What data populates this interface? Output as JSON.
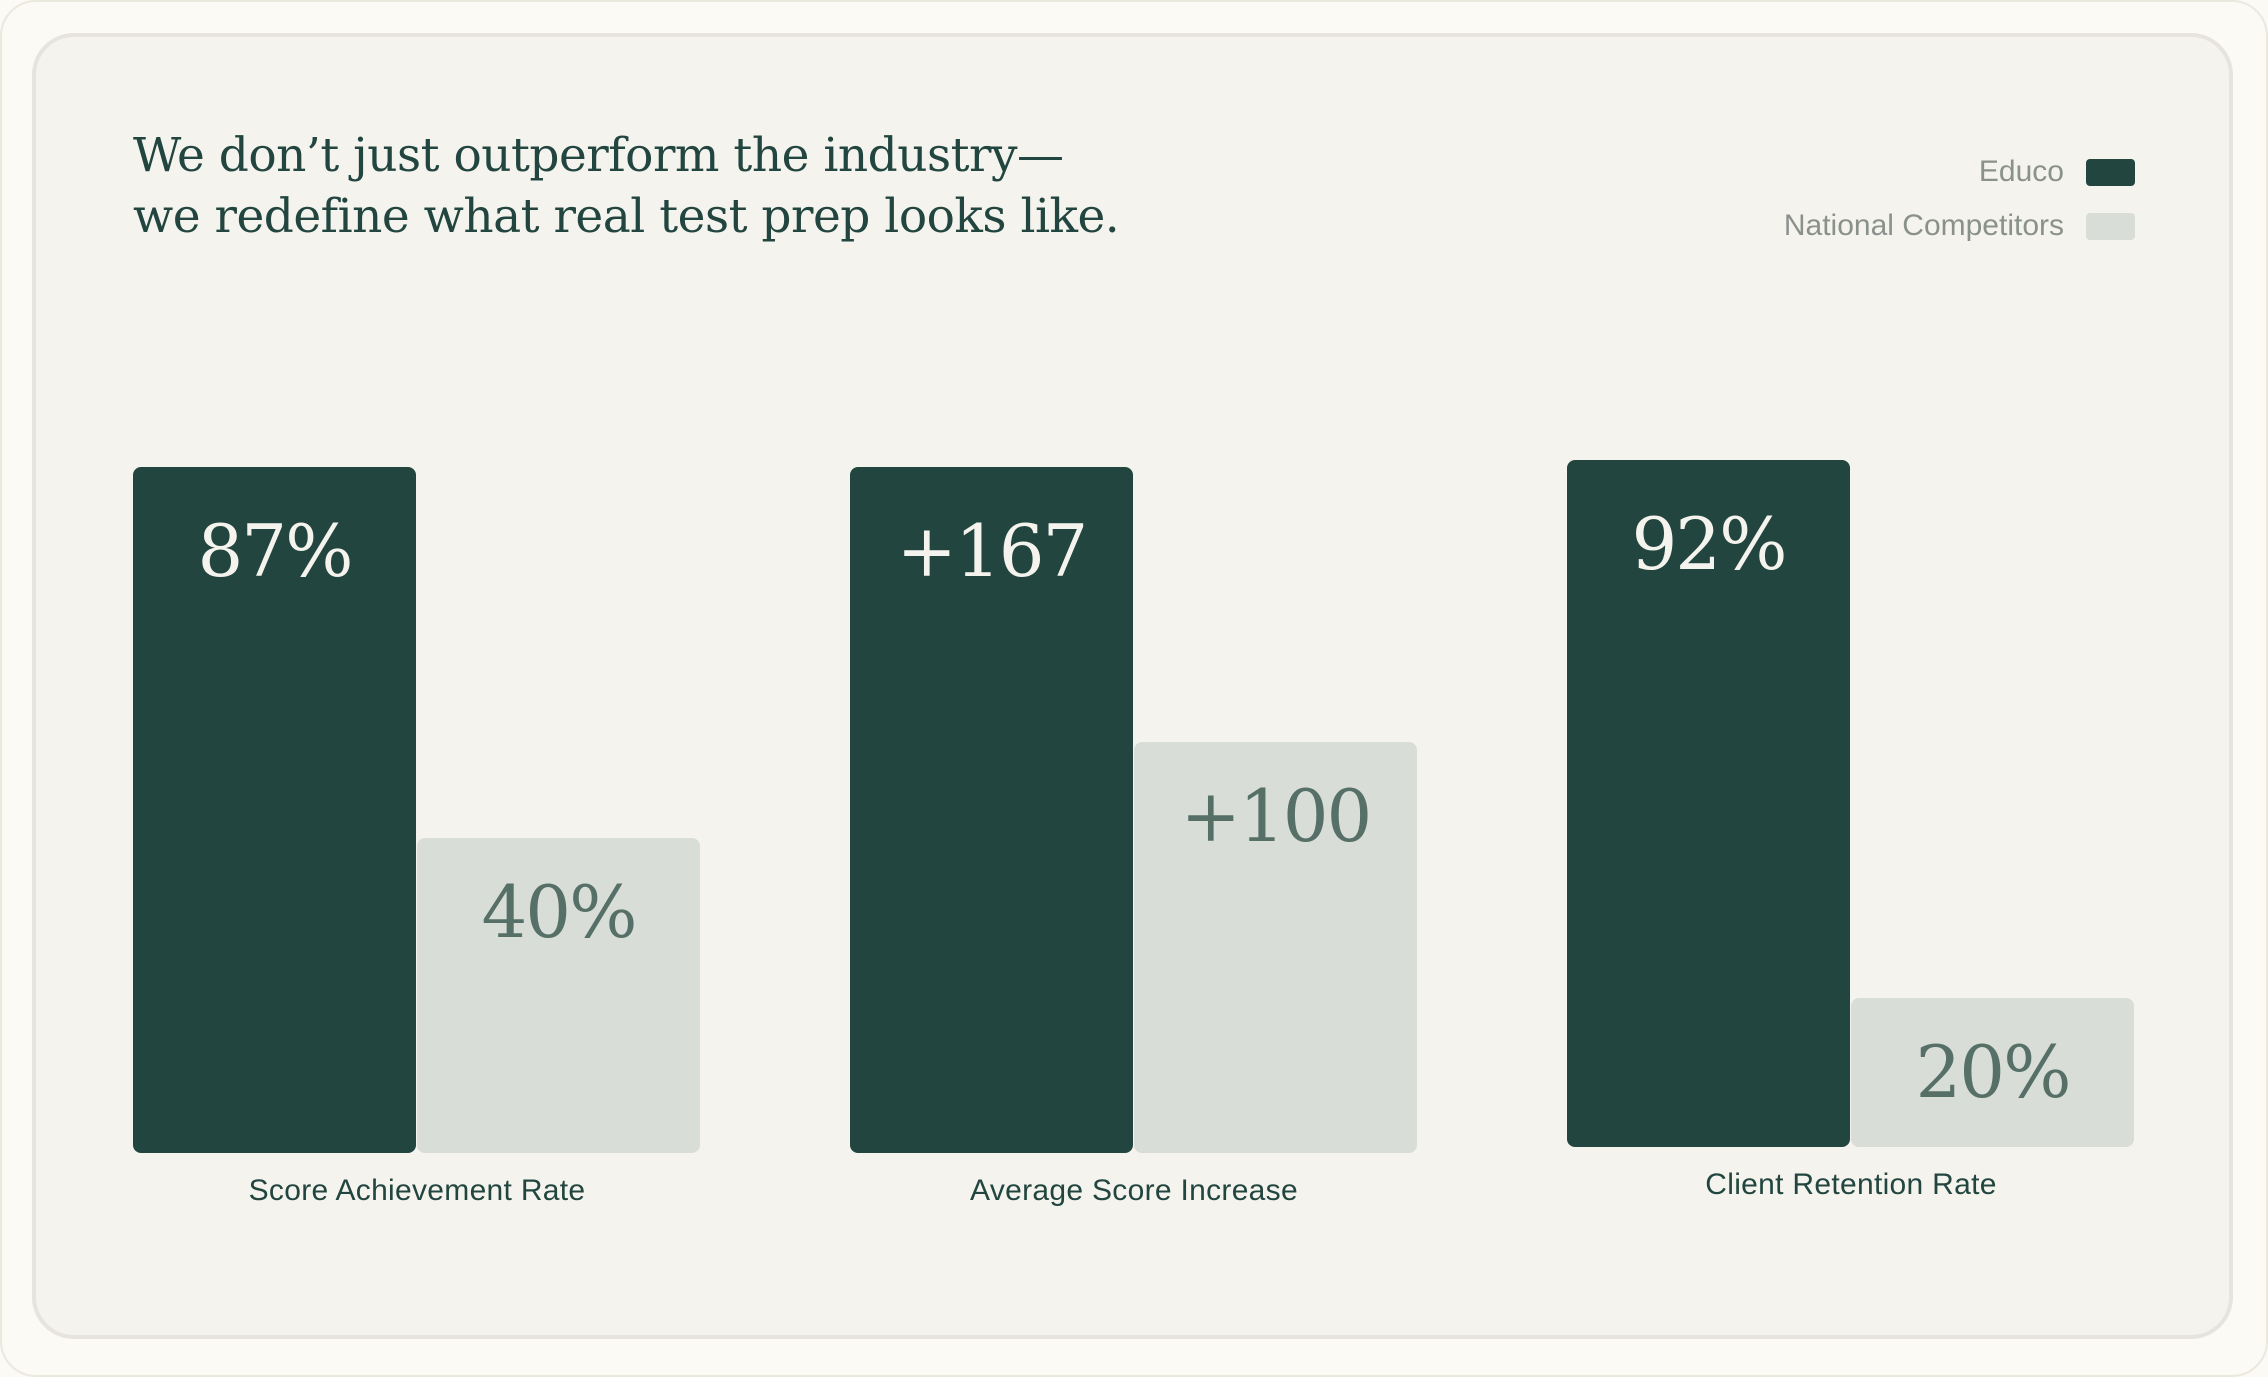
{
  "colors": {
    "educo": "#22463f",
    "competitors": "#d8ddd8",
    "educo_text": "#f5f3ee",
    "competitor_text": "#567068"
  },
  "chart_data": {
    "type": "bar",
    "title_lines": [
      "We don’t just outperform the industry—",
      "we redefine what real test prep looks like."
    ],
    "categories": [
      "Score Achievement Rate",
      "Average Score Increase",
      "Client Retention Rate"
    ],
    "series": [
      {
        "name": "Educo",
        "values": [
          87,
          167,
          92
        ],
        "labels": [
          "87%",
          "+167",
          "92%"
        ]
      },
      {
        "name": "National Competitors",
        "values": [
          40,
          100,
          20
        ],
        "labels": [
          "40%",
          "+100",
          "20%"
        ]
      }
    ],
    "legend": "top-right",
    "xlabel": "",
    "ylabel": "",
    "grid": false
  }
}
